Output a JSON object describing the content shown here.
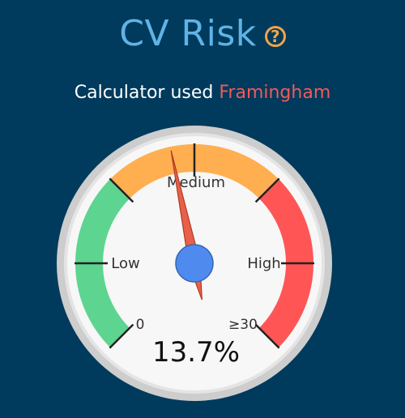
{
  "header": {
    "title": "CV Risk",
    "help_icon": "question-circle-icon"
  },
  "calculator": {
    "prefix": "Calculator used",
    "name": "Framingham"
  },
  "gauge": {
    "value": 13.7,
    "value_display": "13.7%",
    "min_label": "0",
    "max_label": "≥30",
    "zones": [
      {
        "label": "Low",
        "color": "#5DD48F"
      },
      {
        "label": "Medium",
        "color": "#FFAE50"
      },
      {
        "label": "High",
        "color": "#FF5555"
      }
    ],
    "needle_color": "#E8604A",
    "hub_color": "#4F8BEF"
  }
}
